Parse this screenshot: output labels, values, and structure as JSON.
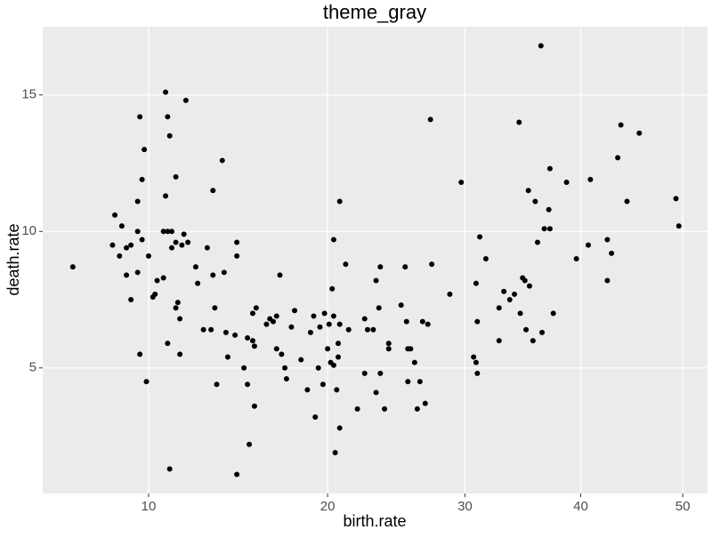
{
  "chart_data": {
    "type": "scatter",
    "title": "theme_gray",
    "x_label": "birth.rate",
    "y_label": "death.rate",
    "x_scale": "sqrt",
    "color": "#000000",
    "grid": true,
    "xlim": [
      5.7,
      52.6
    ],
    "ylim": [
      0.4,
      17.5
    ],
    "xticks": [
      10,
      20,
      30,
      40,
      50
    ],
    "yticks": [
      5,
      10,
      15
    ],
    "x": [
      6.8,
      8.5,
      8.4,
      8.8,
      8.7,
      9.0,
      9.0,
      9.2,
      9.2,
      9.5,
      9.5,
      9.5,
      9.6,
      9.6,
      9.7,
      9.7,
      9.8,
      9.9,
      10.0,
      10.2,
      10.3,
      10.4,
      10.7,
      10.7,
      10.8,
      10.8,
      10.9,
      10.9,
      10.9,
      11.0,
      11.0,
      11.1,
      11.1,
      11.3,
      11.3,
      11.3,
      11.4,
      11.5,
      11.5,
      11.6,
      11.7,
      11.8,
      11.9,
      12.3,
      12.4,
      12.7,
      12.9,
      13.1,
      13.2,
      13.2,
      13.3,
      13.4,
      13.7,
      13.8,
      13.9,
      14.0,
      14.4,
      14.5,
      14.5,
      14.5,
      14.9,
      15.1,
      15.1,
      15.2,
      15.4,
      15.4,
      15.5,
      15.6,
      15.5,
      16.2,
      16.4,
      16.6,
      16.8,
      16.8,
      17.0,
      17.1,
      17.3,
      17.4,
      17.7,
      17.9,
      18.3,
      18.7,
      18.9,
      19.1,
      19.2,
      19.4,
      19.5,
      19.7,
      19.8,
      20.0,
      20.1,
      20.2,
      20.3,
      20.4,
      20.4,
      20.4,
      20.5,
      20.6,
      20.7,
      20.7,
      20.8,
      20.8,
      20.8,
      21.2,
      21.4,
      22.0,
      22.5,
      22.5,
      22.7,
      23.1,
      23.3,
      23.3,
      23.5,
      23.6,
      23.6,
      23.9,
      24.2,
      24.2,
      25.1,
      25.4,
      25.5,
      25.6,
      25.6,
      25.8,
      26.1,
      26.3,
      26.5,
      26.7,
      26.9,
      27.1,
      27.3,
      27.4,
      28.8,
      29.7,
      30.7,
      30.9,
      30.9,
      31.0,
      31.0,
      31.2,
      31.7,
      32.8,
      32.8,
      33.2,
      33.7,
      34.1,
      34.6,
      34.5,
      34.8,
      35.0,
      35.1,
      35.4,
      35.3,
      35.7,
      35.9,
      36.1,
      36.4,
      36.5,
      36.7,
      37.1,
      37.2,
      37.2,
      37.5,
      38.7,
      39.6,
      40.7,
      40.9,
      42.5,
      42.5,
      42.9,
      43.5,
      43.8,
      44.4,
      45.6,
      49.3,
      49.6
    ],
    "values": [
      8.7,
      10.6,
      9.5,
      10.2,
      9.1,
      8.4,
      9.4,
      9.5,
      7.5,
      11.1,
      10.0,
      8.5,
      14.2,
      5.5,
      11.9,
      9.7,
      13.0,
      4.5,
      9.1,
      7.6,
      7.7,
      8.2,
      8.3,
      10.0,
      15.1,
      11.3,
      10.0,
      5.9,
      14.2,
      13.5,
      1.3,
      10.0,
      9.4,
      12.0,
      7.2,
      9.6,
      7.4,
      5.5,
      6.8,
      9.5,
      9.9,
      14.8,
      9.6,
      8.7,
      8.1,
      6.4,
      9.4,
      6.4,
      8.4,
      11.5,
      7.2,
      4.4,
      12.6,
      8.5,
      6.3,
      5.4,
      6.2,
      9.6,
      9.1,
      1.1,
      5.0,
      4.4,
      6.1,
      2.2,
      7.0,
      6.0,
      5.8,
      7.2,
      3.6,
      6.6,
      6.8,
      6.7,
      6.9,
      5.7,
      8.4,
      5.5,
      5.0,
      4.6,
      6.5,
      7.1,
      5.3,
      4.2,
      6.3,
      6.9,
      3.2,
      5.0,
      6.5,
      4.4,
      7.0,
      5.7,
      6.6,
      5.2,
      7.9,
      6.9,
      9.7,
      5.1,
      1.9,
      4.2,
      5.9,
      5.4,
      6.6,
      11.1,
      2.8,
      8.8,
      6.4,
      3.5,
      6.8,
      4.8,
      6.4,
      6.4,
      8.2,
      4.1,
      7.2,
      8.7,
      4.8,
      3.5,
      5.9,
      5.7,
      7.3,
      8.7,
      6.7,
      5.7,
      4.5,
      5.7,
      5.2,
      3.5,
      4.5,
      6.7,
      3.7,
      6.6,
      14.1,
      8.8,
      7.7,
      11.8,
      5.4,
      8.1,
      5.2,
      6.7,
      4.8,
      9.8,
      9.0,
      7.2,
      6.0,
      7.8,
      7.5,
      7.7,
      7.0,
      14.0,
      8.3,
      8.2,
      6.4,
      8.0,
      11.5,
      6.0,
      11.1,
      9.6,
      16.8,
      6.3,
      10.1,
      10.8,
      12.3,
      10.1,
      7.0,
      11.8,
      9.0,
      9.5,
      11.9,
      9.7,
      8.2,
      9.2,
      12.7,
      13.9,
      11.1,
      13.6,
      11.2,
      10.2
    ]
  }
}
